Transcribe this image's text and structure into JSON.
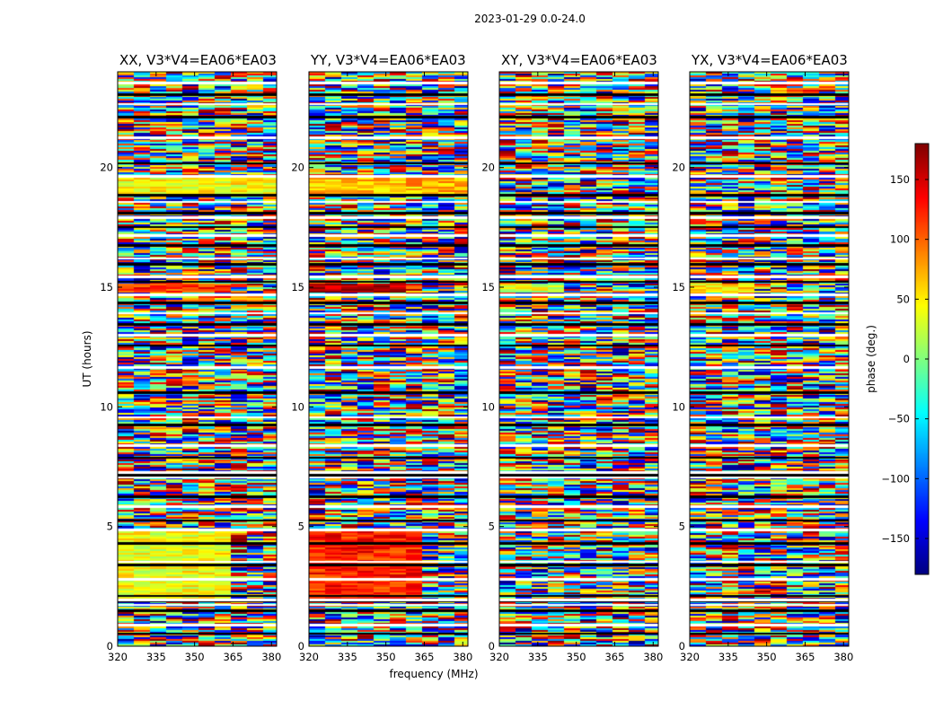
{
  "chart_data": {
    "type": "heatmap",
    "suptitle": "2023-01-29 0.0-24.0",
    "xlabel": "frequency (MHz)",
    "ylabel": "UT (hours)",
    "xlim": [
      320,
      382
    ],
    "ylim": [
      0,
      24
    ],
    "xticks": [
      320,
      335,
      350,
      365,
      380
    ],
    "yticks": [
      0,
      5,
      10,
      15,
      20
    ],
    "colorbar": {
      "label": "phase (deg.)",
      "range": [
        -180,
        180
      ],
      "ticks": [
        150,
        100,
        50,
        0,
        -50,
        -100,
        -150
      ],
      "tick_labels": [
        "150",
        "100",
        "50",
        "0",
        "−50",
        "−100",
        "−150"
      ],
      "colormap": "jet"
    },
    "panels": [
      {
        "title": "XX, V3*V4=EA06*EA03",
        "coherent_blocks": [
          {
            "t_start": 1.9,
            "t_end": 4.9,
            "f_start": 320,
            "f_end": 359,
            "phase": 40
          },
          {
            "t_start": 14.8,
            "t_end": 15.2,
            "f_start": 320,
            "f_end": 358,
            "phase": 115
          },
          {
            "t_start": 18.95,
            "t_end": 19.6,
            "f_start": 320,
            "f_end": 382,
            "phase": 45
          }
        ]
      },
      {
        "title": "YY, V3*V4=EA06*EA03",
        "coherent_blocks": [
          {
            "t_start": 1.9,
            "t_end": 4.9,
            "f_start": 320,
            "f_end": 359,
            "phase": 125
          },
          {
            "t_start": 14.8,
            "t_end": 15.2,
            "f_start": 320,
            "f_end": 356,
            "phase": 165
          },
          {
            "t_start": 18.95,
            "t_end": 19.6,
            "f_start": 320,
            "f_end": 382,
            "phase": 70
          }
        ]
      },
      {
        "title": "XY, V3*V4=EA06*EA03",
        "coherent_blocks": [
          {
            "t_start": 14.8,
            "t_end": 15.2,
            "f_start": 320,
            "f_end": 343,
            "phase": 30
          }
        ]
      },
      {
        "title": "YX, V3*V4=EA06*EA03",
        "coherent_blocks": [
          {
            "t_start": 14.8,
            "t_end": 15.2,
            "f_start": 320,
            "f_end": 343,
            "phase": 55
          }
        ]
      }
    ],
    "flagged_hours": [
      0.55,
      0.95,
      1.55,
      1.75,
      1.95,
      2.0,
      2.15,
      2.85,
      3.45,
      3.55,
      4.35,
      4.9,
      5.3,
      5.9,
      6.3,
      7.1,
      7.2,
      7.3,
      7.9,
      8.45,
      9.3,
      9.6,
      10.65,
      11.7,
      12.6,
      13.05,
      13.5,
      13.95,
      14.4,
      14.75,
      15.25,
      15.5,
      16.0,
      16.25,
      16.8,
      17.2,
      17.55,
      17.95,
      18.15,
      18.6,
      18.9,
      19.7,
      20.2,
      21.3,
      22.15,
      22.7,
      23.1,
      23.6
    ]
  }
}
